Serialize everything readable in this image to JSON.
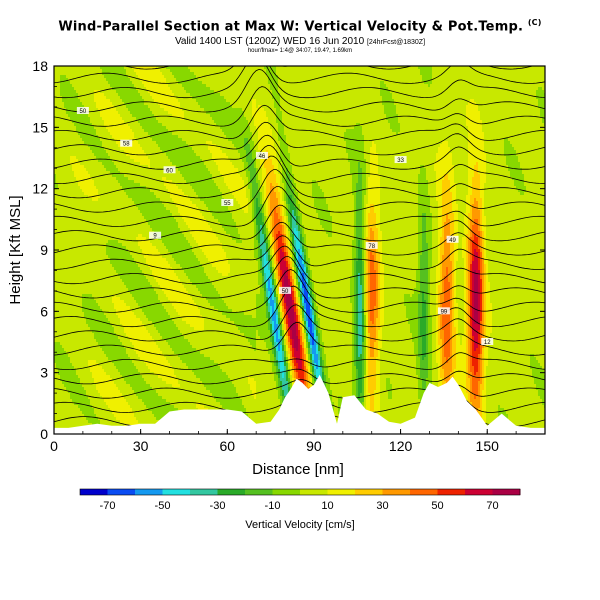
{
  "header": {
    "title": "Wind-Parallel Section at Max W: Vertical Velocity & Pot.Temp.",
    "title_mark": "(C)",
    "subtitle": "Valid 1400 LST (1200Z) WED 16 Jun 2010",
    "subtitle_run": "[24hrFcst@1830Z]",
    "hour_line": "hour/fmax= 1:4@ 34:07, 19.4?, 1.69km"
  },
  "chart_data": {
    "type": "heatmap",
    "title": "Wind-Parallel Section at Max W: Vertical Velocity & Pot.Temp.",
    "xlabel": "Distance [nm]",
    "ylabel": "Height [Kft MSL]",
    "xlim": [
      0,
      170
    ],
    "ylim": [
      0,
      18
    ],
    "x_ticks": [
      0,
      30,
      60,
      90,
      120,
      150
    ],
    "y_ticks": [
      0,
      3,
      6,
      9,
      12,
      15,
      18
    ],
    "colorbar": {
      "label": "Vertical Velocity [cm/s]",
      "ticks": [
        -70,
        -50,
        -30,
        -10,
        10,
        30,
        50,
        70
      ],
      "range": [
        -80,
        80
      ],
      "colors": [
        "#0000cc",
        "#0a4cf2",
        "#1499f0",
        "#22e0e0",
        "#33c7a0",
        "#2aaa28",
        "#55c020",
        "#88d800",
        "#c8e800",
        "#f0f000",
        "#ffcc00",
        "#ff9900",
        "#ff6600",
        "#ee2200",
        "#cc0033",
        "#aa0044"
      ]
    },
    "updraft_bands": [
      {
        "center_x": 82,
        "peak": 75
      },
      {
        "center_x": 110,
        "peak": 40
      },
      {
        "center_x": 136,
        "peak": 45
      },
      {
        "center_x": 146,
        "peak": 70
      }
    ],
    "downdraft_bands": [
      {
        "center_x": 76,
        "peak": -60
      },
      {
        "center_x": 88,
        "peak": -70
      },
      {
        "center_x": 106,
        "peak": -45
      },
      {
        "center_x": 128,
        "peak": -25
      }
    ],
    "terrain_x": [
      0,
      5,
      10,
      15,
      20,
      25,
      30,
      35,
      40,
      45,
      50,
      55,
      60,
      65,
      70,
      75,
      78,
      80,
      82,
      84,
      86,
      88,
      90,
      92,
      95,
      98,
      100,
      104,
      108,
      112,
      116,
      120,
      125,
      128,
      130,
      133,
      136,
      138,
      140,
      143,
      146,
      148,
      150,
      155,
      160,
      165,
      170
    ],
    "terrain_y": [
      0.3,
      0.3,
      0.4,
      0.5,
      0.4,
      0.4,
      0.5,
      0.5,
      1.1,
      1.2,
      1.2,
      1.2,
      1.2,
      1.1,
      0.5,
      0.6,
      1.2,
      1.8,
      2.2,
      2.7,
      2.5,
      2.2,
      2.4,
      2.9,
      2.0,
      0.5,
      1.8,
      1.9,
      1.2,
      1.0,
      0.6,
      0.5,
      0.8,
      2.0,
      2.5,
      2.3,
      2.5,
      2.8,
      2.4,
      1.6,
      1.2,
      0.8,
      0.4,
      1.0,
      0.4,
      0.3,
      0.3
    ],
    "isentrope_labels": [
      "50",
      "58",
      "60",
      "55",
      "46",
      "33",
      "49",
      "50",
      "12",
      "78",
      "99",
      "9"
    ]
  }
}
